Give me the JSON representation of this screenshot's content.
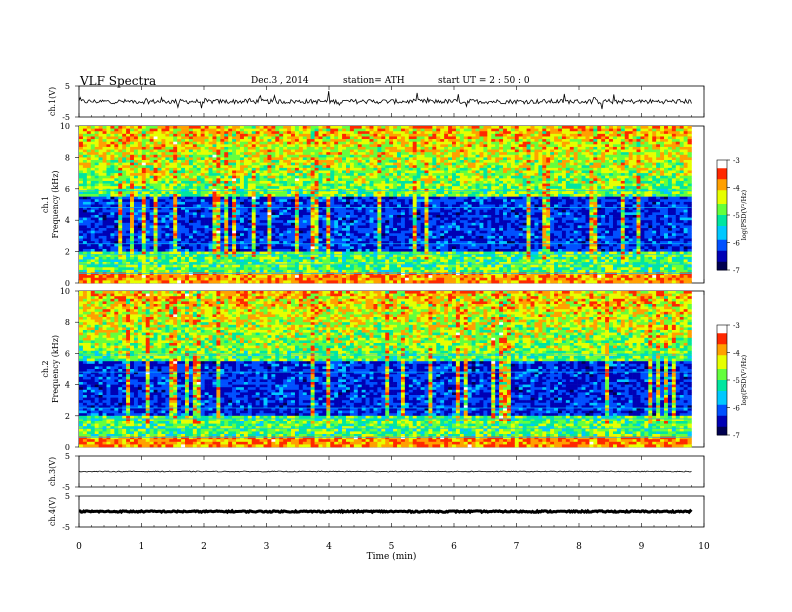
{
  "header": {
    "title": "VLF  Spectra",
    "date": "Dec.3  , 2014",
    "station": "station= ATH",
    "start": "start  UT  =   2  : 50 : 0"
  },
  "chart_data": [
    {
      "type": "line",
      "panel": "ch1-waveform",
      "ylabel": "ch.1(V)",
      "ylim": [
        -5,
        5
      ],
      "yticks": [
        "5",
        "-5"
      ],
      "x_range_min": [
        0,
        9.8
      ],
      "approx_level": 0,
      "noise_amplitude": 1
    },
    {
      "type": "heatmap",
      "panel": "ch1-spectrogram",
      "ylabel": "ch.1\nFrequency  (kHz)",
      "ylim": [
        0,
        10
      ],
      "yticks": [
        "0",
        "2",
        "4",
        "6",
        "8",
        "10"
      ],
      "x_range_min": [
        0,
        9.8
      ],
      "colorbar": {
        "label": "log(PSD(V²/Hz)",
        "ticks": [
          "-3",
          "-4",
          "-5",
          "-6",
          "-7"
        ],
        "range": [
          -7,
          -3
        ]
      }
    },
    {
      "type": "heatmap",
      "panel": "ch2-spectrogram",
      "ylabel": "ch.2\nFrequency  (kHz)",
      "ylim": [
        0,
        10
      ],
      "yticks": [
        "0",
        "2",
        "4",
        "6",
        "8",
        "10"
      ],
      "x_range_min": [
        0,
        9.8
      ],
      "colorbar": {
        "label": "log(PSD(V²/Hz)",
        "ticks": [
          "-3",
          "-4",
          "-5",
          "-6",
          "-7"
        ],
        "range": [
          -7,
          -3
        ]
      }
    },
    {
      "type": "line",
      "panel": "ch3-waveform",
      "ylabel": "ch.3(V)",
      "ylim": [
        -5,
        5
      ],
      "yticks": [
        "5",
        "-5"
      ],
      "x_range_min": [
        0,
        9.8
      ],
      "approx_level": 0,
      "noise_amplitude": 0.2
    },
    {
      "type": "line",
      "panel": "ch4-waveform",
      "ylabel": "ch.4(V)",
      "ylim": [
        -5,
        5
      ],
      "yticks": [
        "5",
        "-5"
      ],
      "x_range_min": [
        0,
        9.8
      ],
      "approx_level": 0,
      "noise_amplitude": 0.3
    }
  ],
  "xaxis": {
    "label": "Time  (min)",
    "xlim": [
      0,
      10
    ],
    "ticks": [
      "0",
      "1",
      "2",
      "3",
      "4",
      "5",
      "6",
      "7",
      "8",
      "9",
      "10"
    ]
  },
  "colors": {
    "colormap": [
      "#000050",
      "#0000b4",
      "#0050ff",
      "#00c8ff",
      "#00e6a0",
      "#64ff3c",
      "#e6ff00",
      "#ffa000",
      "#ff2800",
      "#ffffff"
    ]
  }
}
